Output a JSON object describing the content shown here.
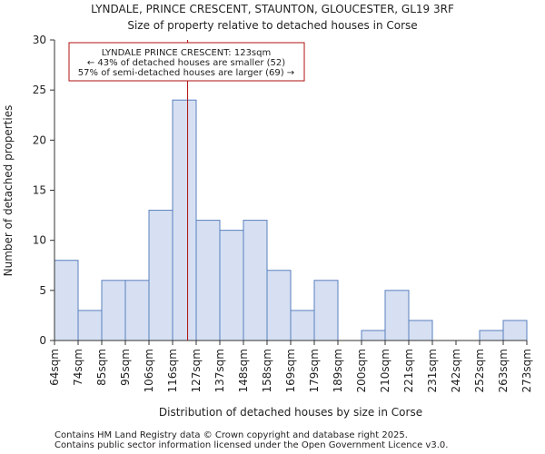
{
  "chart_data": {
    "type": "histogram",
    "title_line1": "LYNDALE, PRINCE CRESCENT, STAUNTON, GLOUCESTER, GL19 3RF",
    "title_line2": "Size of property relative to detached houses in Corse",
    "xlabel": "Distribution of detached houses by size in Corse",
    "ylabel": "Number of detached properties",
    "categories": [
      "64sqm",
      "74sqm",
      "85sqm",
      "95sqm",
      "106sqm",
      "116sqm",
      "127sqm",
      "137sqm",
      "148sqm",
      "158sqm",
      "169sqm",
      "179sqm",
      "189sqm",
      "200sqm",
      "210sqm",
      "221sqm",
      "231sqm",
      "242sqm",
      "252sqm",
      "263sqm",
      "273sqm"
    ],
    "values": [
      8,
      3,
      6,
      6,
      13,
      24,
      12,
      11,
      12,
      7,
      3,
      6,
      0,
      1,
      5,
      2,
      0,
      0,
      1,
      2
    ],
    "ylim": [
      0,
      30
    ],
    "yticks": [
      0,
      5,
      10,
      15,
      20,
      25,
      30
    ],
    "marker_value_sqm": 123,
    "annotation": {
      "line1": "LYNDALE PRINCE CRESCENT: 123sqm",
      "line2": "← 43% of detached houses are smaller (52)",
      "line3": "57% of semi-detached houses are larger (69) →"
    },
    "colors": {
      "bar_fill": "#d6e0f2",
      "bar_stroke": "#5a7fbf",
      "marker": "#b01010",
      "axis": "#333333"
    }
  },
  "footer": {
    "line1": "Contains HM Land Registry data © Crown copyright and database right 2025.",
    "line2": "Contains public sector information licensed under the Open Government Licence v3.0."
  }
}
